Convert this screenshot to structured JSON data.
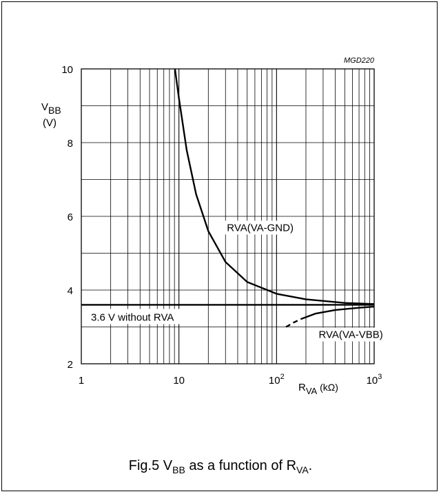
{
  "chart_data": {
    "type": "line",
    "id_label": "MGD220",
    "xscale": "log",
    "xlim": [
      1,
      1000
    ],
    "ylim": [
      2,
      10
    ],
    "x_ticks": [
      {
        "value": 1,
        "base": "1",
        "exp": ""
      },
      {
        "value": 10,
        "base": "10",
        "exp": ""
      },
      {
        "value": 100,
        "base": "10",
        "exp": "2"
      },
      {
        "value": 1000,
        "base": "10",
        "exp": "3"
      }
    ],
    "y_ticks": [
      2,
      4,
      6,
      8,
      10
    ],
    "y_grid_step": 1,
    "grid": true,
    "ylabel": {
      "main": "V",
      "sub": "BB",
      "unit": "(V)"
    },
    "xlabel": {
      "main": "R",
      "sub": "VA",
      "unit": " (kΩ)"
    },
    "series": [
      {
        "name": "RVA(VA-GND)",
        "style": "solid",
        "x": [
          9.1,
          10,
          12,
          15,
          20,
          30,
          50,
          100,
          200,
          500,
          1000
        ],
        "y": [
          10.0,
          9.2,
          7.8,
          6.6,
          5.6,
          4.76,
          4.22,
          3.9,
          3.75,
          3.65,
          3.62
        ]
      },
      {
        "name": "RVA(VA-VBB)",
        "style": "dashed",
        "x": [
          125,
          150,
          180
        ],
        "y": [
          3.0,
          3.12,
          3.22
        ]
      },
      {
        "name": "RVA(VA-VBB)",
        "style": "solid",
        "x": [
          180,
          250,
          400,
          700,
          1000
        ],
        "y": [
          3.22,
          3.36,
          3.46,
          3.52,
          3.55
        ]
      }
    ],
    "reference_line": {
      "y": 3.6,
      "label": "3.6 V without RVA"
    },
    "annotations": [
      {
        "text": "RVA(VA-GND)",
        "x": 31,
        "y": 5.6
      },
      {
        "text": "RVA(VA-VBB)",
        "x": 270,
        "y": 2.7
      }
    ]
  },
  "caption": {
    "prefix": "Fig.5  V",
    "sub1": "BB",
    "middle": " as a function of R",
    "sub2": "VA",
    "suffix": "."
  }
}
